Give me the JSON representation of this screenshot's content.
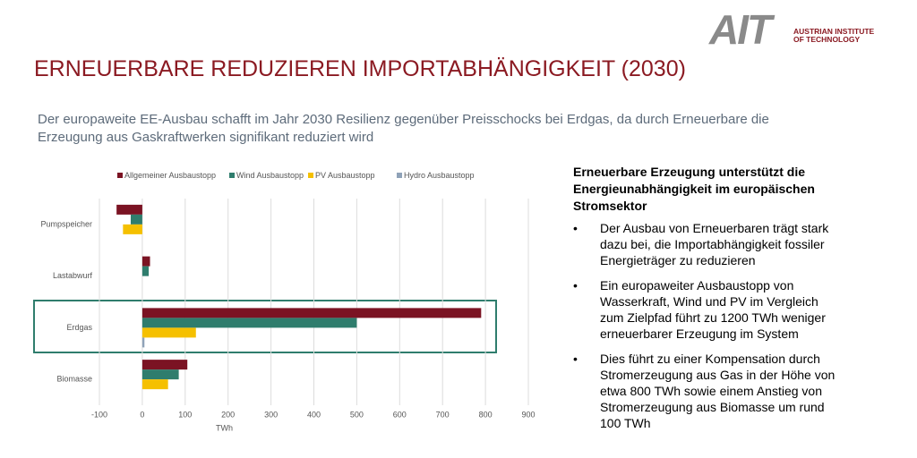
{
  "logo": {
    "mark": "AIT",
    "line1": "AUSTRIAN INSTITUTE",
    "line2": "OF TECHNOLOGY"
  },
  "title": "ERNEUERBARE REDUZIEREN IMPORTABHÄNGIGKEIT (2030)",
  "subtitle": "Der europaweite EE-Ausbau schafft im Jahr 2030 Resilienz gegenüber Preisschocks bei Erdgas, da durch Erneuerbare die Erzeugung aus Gaskraftwerken signifikant reduziert wird",
  "chart_data": {
    "type": "bar",
    "orientation": "horizontal",
    "x_label": "TWh",
    "categories": [
      "Pumpspeicher",
      "Lastabwurf",
      "Erdgas",
      "Biomasse"
    ],
    "series": [
      {
        "name": "Allgemeiner Ausbaustopp",
        "color": "#7b1323",
        "values": [
          -60,
          18,
          790,
          105
        ]
      },
      {
        "name": "Wind Ausbaustopp",
        "color": "#2f7d6d",
        "values": [
          -27,
          15,
          500,
          85
        ]
      },
      {
        "name": "PV Ausbaustopp",
        "color": "#f5c000",
        "values": [
          -45,
          0,
          125,
          60
        ]
      },
      {
        "name": "Hydro Ausbaustopp",
        "color": "#8fa2b8",
        "values": [
          0,
          0,
          5,
          0
        ]
      }
    ],
    "xlim": [
      -100,
      900
    ],
    "xticks": [
      -100,
      0,
      100,
      200,
      300,
      400,
      500,
      600,
      700,
      800,
      900
    ],
    "grid": true,
    "legend": "top"
  },
  "panel": {
    "heading": "Erneuerbare Erzeugung unterstützt die Energieunabhängigkeit im europäischen Stromsektor",
    "bullets": [
      "Der Ausbau von Erneuerbaren trägt stark dazu bei, die Importabhängigkeit fossiler Energieträger zu reduzieren",
      "Ein europaweiter Ausbaustopp von Wasserkraft, Wind und PV im Vergleich zum Zielpfad führt zu 1200 TWh weniger erneuerbarer Erzeugung im System",
      "Dies führt zu einer Kompensation durch Stromerzeugung aus Gas in der Höhe von etwa 800 TWh sowie einem Anstieg von Stromerzeugung aus Biomasse um rund 100 TWh"
    ]
  }
}
